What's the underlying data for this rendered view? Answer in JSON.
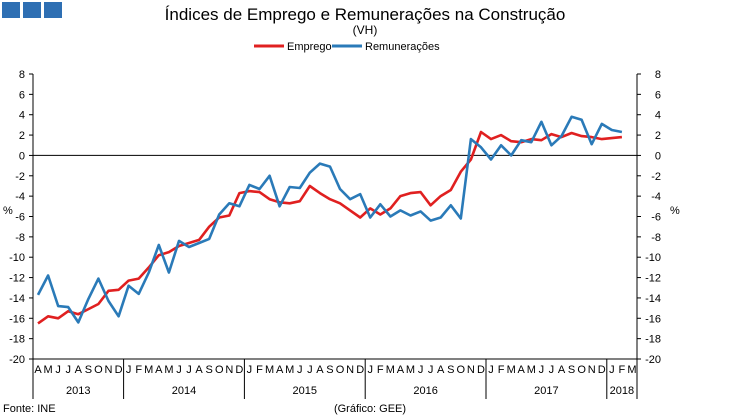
{
  "chart_data": {
    "type": "line",
    "title": "Índices de Emprego e Remunerações na Construção",
    "subtitle": "(VH)",
    "ylabel_left": "%",
    "ylabel_right": "%",
    "ylim": [
      -20,
      8
    ],
    "yticks": [
      -20,
      -18,
      -16,
      -14,
      -12,
      -10,
      -8,
      -6,
      -4,
      -2,
      0,
      2,
      4,
      6,
      8
    ],
    "grid": false,
    "legend_position": "top-center",
    "month_labels": [
      "A",
      "M",
      "J",
      "J",
      "A",
      "S",
      "O",
      "N",
      "D",
      "J",
      "F",
      "M",
      "A",
      "M",
      "J",
      "J",
      "A",
      "S",
      "O",
      "N",
      "D",
      "J",
      "F",
      "M",
      "A",
      "M",
      "J",
      "J",
      "A",
      "S",
      "O",
      "N",
      "D",
      "J",
      "F",
      "M",
      "A",
      "M",
      "J",
      "J",
      "A",
      "S",
      "O",
      "N",
      "D",
      "J",
      "F",
      "M",
      "A",
      "M",
      "J",
      "J",
      "A",
      "S",
      "O",
      "N",
      "D",
      "J",
      "F",
      "M"
    ],
    "year_groups": [
      {
        "label": "2013",
        "count": 9
      },
      {
        "label": "2014",
        "count": 12
      },
      {
        "label": "2015",
        "count": 12
      },
      {
        "label": "2016",
        "count": 12
      },
      {
        "label": "2017",
        "count": 12
      },
      {
        "label": "2018",
        "count": 3
      }
    ],
    "series": [
      {
        "name": "Emprego",
        "color": "#e02020",
        "values": [
          -16.5,
          -15.8,
          -16.0,
          -15.3,
          -15.6,
          -15.1,
          -14.6,
          -13.3,
          -13.2,
          -12.3,
          -12.1,
          -11.0,
          -9.8,
          -9.5,
          -8.9,
          -8.6,
          -8.3,
          -7.0,
          -6.1,
          -5.9,
          -3.7,
          -3.5,
          -3.6,
          -4.3,
          -4.6,
          -4.7,
          -4.5,
          -3.0,
          -3.7,
          -4.3,
          -4.7,
          -5.4,
          -6.1,
          -5.2,
          -5.8,
          -5.2,
          -4.0,
          -3.7,
          -3.6,
          -4.9,
          -4.0,
          -3.4,
          -1.6,
          -0.4,
          2.3,
          1.6,
          2.0,
          1.4,
          1.3,
          1.6,
          1.5,
          2.1,
          1.8,
          2.2,
          1.9,
          1.8,
          1.6,
          1.7,
          1.8
        ]
      },
      {
        "name": "Remunerações",
        "color": "#2a7ab8",
        "values": [
          -13.7,
          -11.8,
          -14.8,
          -14.9,
          -16.4,
          -14.1,
          -12.1,
          -14.3,
          -15.8,
          -12.8,
          -13.6,
          -11.5,
          -8.8,
          -11.5,
          -8.4,
          -9.0,
          -8.6,
          -8.2,
          -5.8,
          -4.7,
          -5.0,
          -2.9,
          -3.3,
          -2.0,
          -5.0,
          -3.1,
          -3.2,
          -1.7,
          -0.8,
          -1.1,
          -3.3,
          -4.3,
          -3.8,
          -6.1,
          -4.8,
          -6.0,
          -5.4,
          -5.9,
          -5.5,
          -6.4,
          -6.1,
          -4.9,
          -6.2,
          1.6,
          0.8,
          -0.4,
          1.0,
          -0.0,
          1.5,
          1.3,
          3.3,
          1.0,
          1.9,
          3.8,
          3.5,
          1.1,
          3.1,
          2.5,
          2.3
        ]
      }
    ]
  },
  "footer": {
    "source": "Fonte: INE",
    "credit": "(Gráfico: GEE)"
  },
  "logo": {
    "icon": "three-blue-squares"
  }
}
